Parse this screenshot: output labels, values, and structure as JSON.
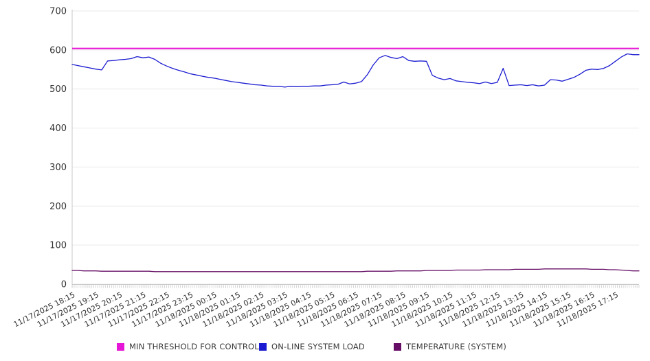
{
  "chart_data": {
    "type": "line",
    "title": "",
    "legend_position": "bottom",
    "grid": "horizontal",
    "sample_interval_minutes": 15,
    "x_axis": {
      "minor_tick_interval_minutes": 5,
      "tick_labels": [
        "11/17/2025 18:15",
        "11/17/2025 19:15",
        "11/17/2025 20:15",
        "11/17/2025 21:15",
        "11/17/2025 22:15",
        "11/17/2025 23:15",
        "11/18/2025 00:15",
        "11/18/2025 01:15",
        "11/18/2025 02:15",
        "11/18/2025 03:15",
        "11/18/2025 04:15",
        "11/18/2025 05:15",
        "11/18/2025 06:15",
        "11/18/2025 07:15",
        "11/18/2025 08:15",
        "11/18/2025 09:15",
        "11/18/2025 10:15",
        "11/18/2025 11:15",
        "11/18/2025 12:15",
        "11/18/2025 13:15",
        "11/18/2025 14:15",
        "11/18/2025 15:15",
        "11/18/2025 16:15",
        "11/18/2025 17:15"
      ]
    },
    "y_axis": {
      "min": 0,
      "max": 700,
      "tick_step": 100,
      "tick_labels": [
        "0",
        "100",
        "200",
        "300",
        "400",
        "500",
        "600",
        "700"
      ]
    },
    "series": [
      {
        "name": "MIN THRESHOLD FOR CONTROL",
        "color": "#e616d6",
        "style": "threshold",
        "value": 604
      },
      {
        "name": "ON-LINE SYSTEM LOAD",
        "color": "#1b1bd1",
        "style": "line",
        "values": [
          563,
          560,
          557,
          554,
          551,
          549,
          572,
          573,
          575,
          576,
          578,
          583,
          580,
          582,
          576,
          566,
          559,
          553,
          548,
          544,
          539,
          536,
          533,
          530,
          528,
          525,
          522,
          519,
          517,
          515,
          513,
          511,
          510,
          508,
          507,
          507,
          505,
          507,
          506,
          507,
          507,
          508,
          508,
          510,
          511,
          512,
          518,
          513,
          515,
          519,
          537,
          562,
          580,
          586,
          581,
          578,
          583,
          573,
          571,
          572,
          571,
          535,
          528,
          524,
          527,
          521,
          519,
          517,
          516,
          514,
          518,
          514,
          517,
          553,
          509,
          510,
          511,
          509,
          511,
          508,
          510,
          524,
          523,
          520,
          525,
          530,
          538,
          548,
          551,
          550,
          553,
          560,
          571,
          582,
          590,
          588,
          588
        ]
      },
      {
        "name": "TEMPERATURE (SYSTEM)",
        "color": "#660e66",
        "style": "line",
        "values": [
          35,
          35,
          34,
          34,
          34,
          33,
          33,
          33,
          33,
          33,
          33,
          33,
          33,
          33,
          32,
          32,
          32,
          32,
          32,
          32,
          32,
          32,
          32,
          32,
          32,
          32,
          32,
          32,
          32,
          32,
          32,
          32,
          32,
          32,
          32,
          32,
          32,
          32,
          32,
          32,
          32,
          32,
          32,
          32,
          32,
          32,
          32,
          32,
          32,
          32,
          33,
          33,
          33,
          33,
          33,
          34,
          34,
          34,
          34,
          34,
          35,
          35,
          35,
          35,
          35,
          36,
          36,
          36,
          36,
          36,
          37,
          37,
          37,
          37,
          37,
          38,
          38,
          38,
          38,
          38,
          39,
          39,
          39,
          39,
          39,
          39,
          39,
          39,
          38,
          38,
          38,
          37,
          37,
          36,
          35,
          34,
          34
        ]
      }
    ]
  }
}
